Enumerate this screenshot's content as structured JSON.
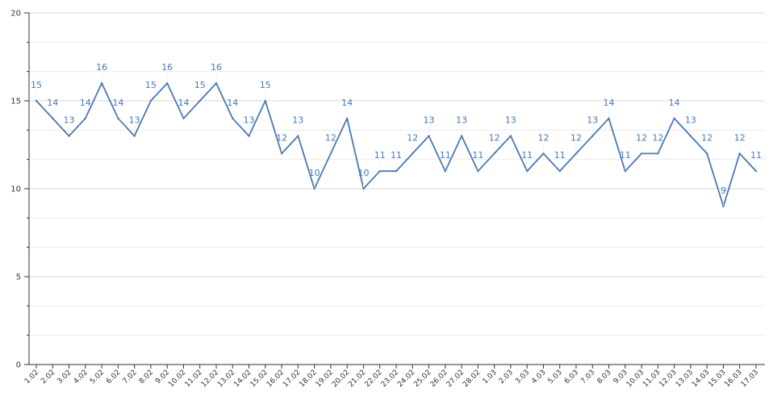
{
  "chart_data": {
    "type": "line",
    "title": "",
    "xlabel": "",
    "ylabel": "",
    "ylim": [
      0,
      20
    ],
    "y_ticks": [
      "0",
      "5",
      "10",
      "15",
      "20"
    ],
    "grid": true,
    "data_labels": true,
    "line_color": "#4a78b4",
    "label_color": "#4a78b4",
    "categories": [
      "1.02",
      "2.02",
      "3.02",
      "4.02",
      "5.02",
      "6.02",
      "7.02",
      "8.02",
      "9.02",
      "10.02",
      "11.02",
      "12.02",
      "13.02",
      "14.02",
      "15.02",
      "16.02",
      "17.02",
      "18.02",
      "19.02",
      "20.02",
      "21.02",
      "22.02",
      "23.02",
      "24.02",
      "25.02",
      "26.02",
      "27.02",
      "28.02",
      "1.03",
      "2.03",
      "3.03",
      "4.03",
      "5.03",
      "6.03",
      "7.03",
      "8.03",
      "9.03",
      "10.03",
      "11.03",
      "12.03",
      "13.03",
      "14.03",
      "15.03",
      "16.03",
      "17.03"
    ],
    "series": [
      {
        "values": [
          15,
          14,
          13,
          14,
          16,
          14,
          13,
          15,
          16,
          14,
          15,
          16,
          14,
          13,
          15,
          12,
          13,
          10,
          12,
          14,
          10,
          11,
          11,
          12,
          13,
          11,
          13,
          11,
          12,
          13,
          11,
          12,
          11,
          12,
          13,
          14,
          11,
          12,
          12,
          14,
          13,
          12,
          9,
          12,
          11
        ]
      }
    ]
  }
}
